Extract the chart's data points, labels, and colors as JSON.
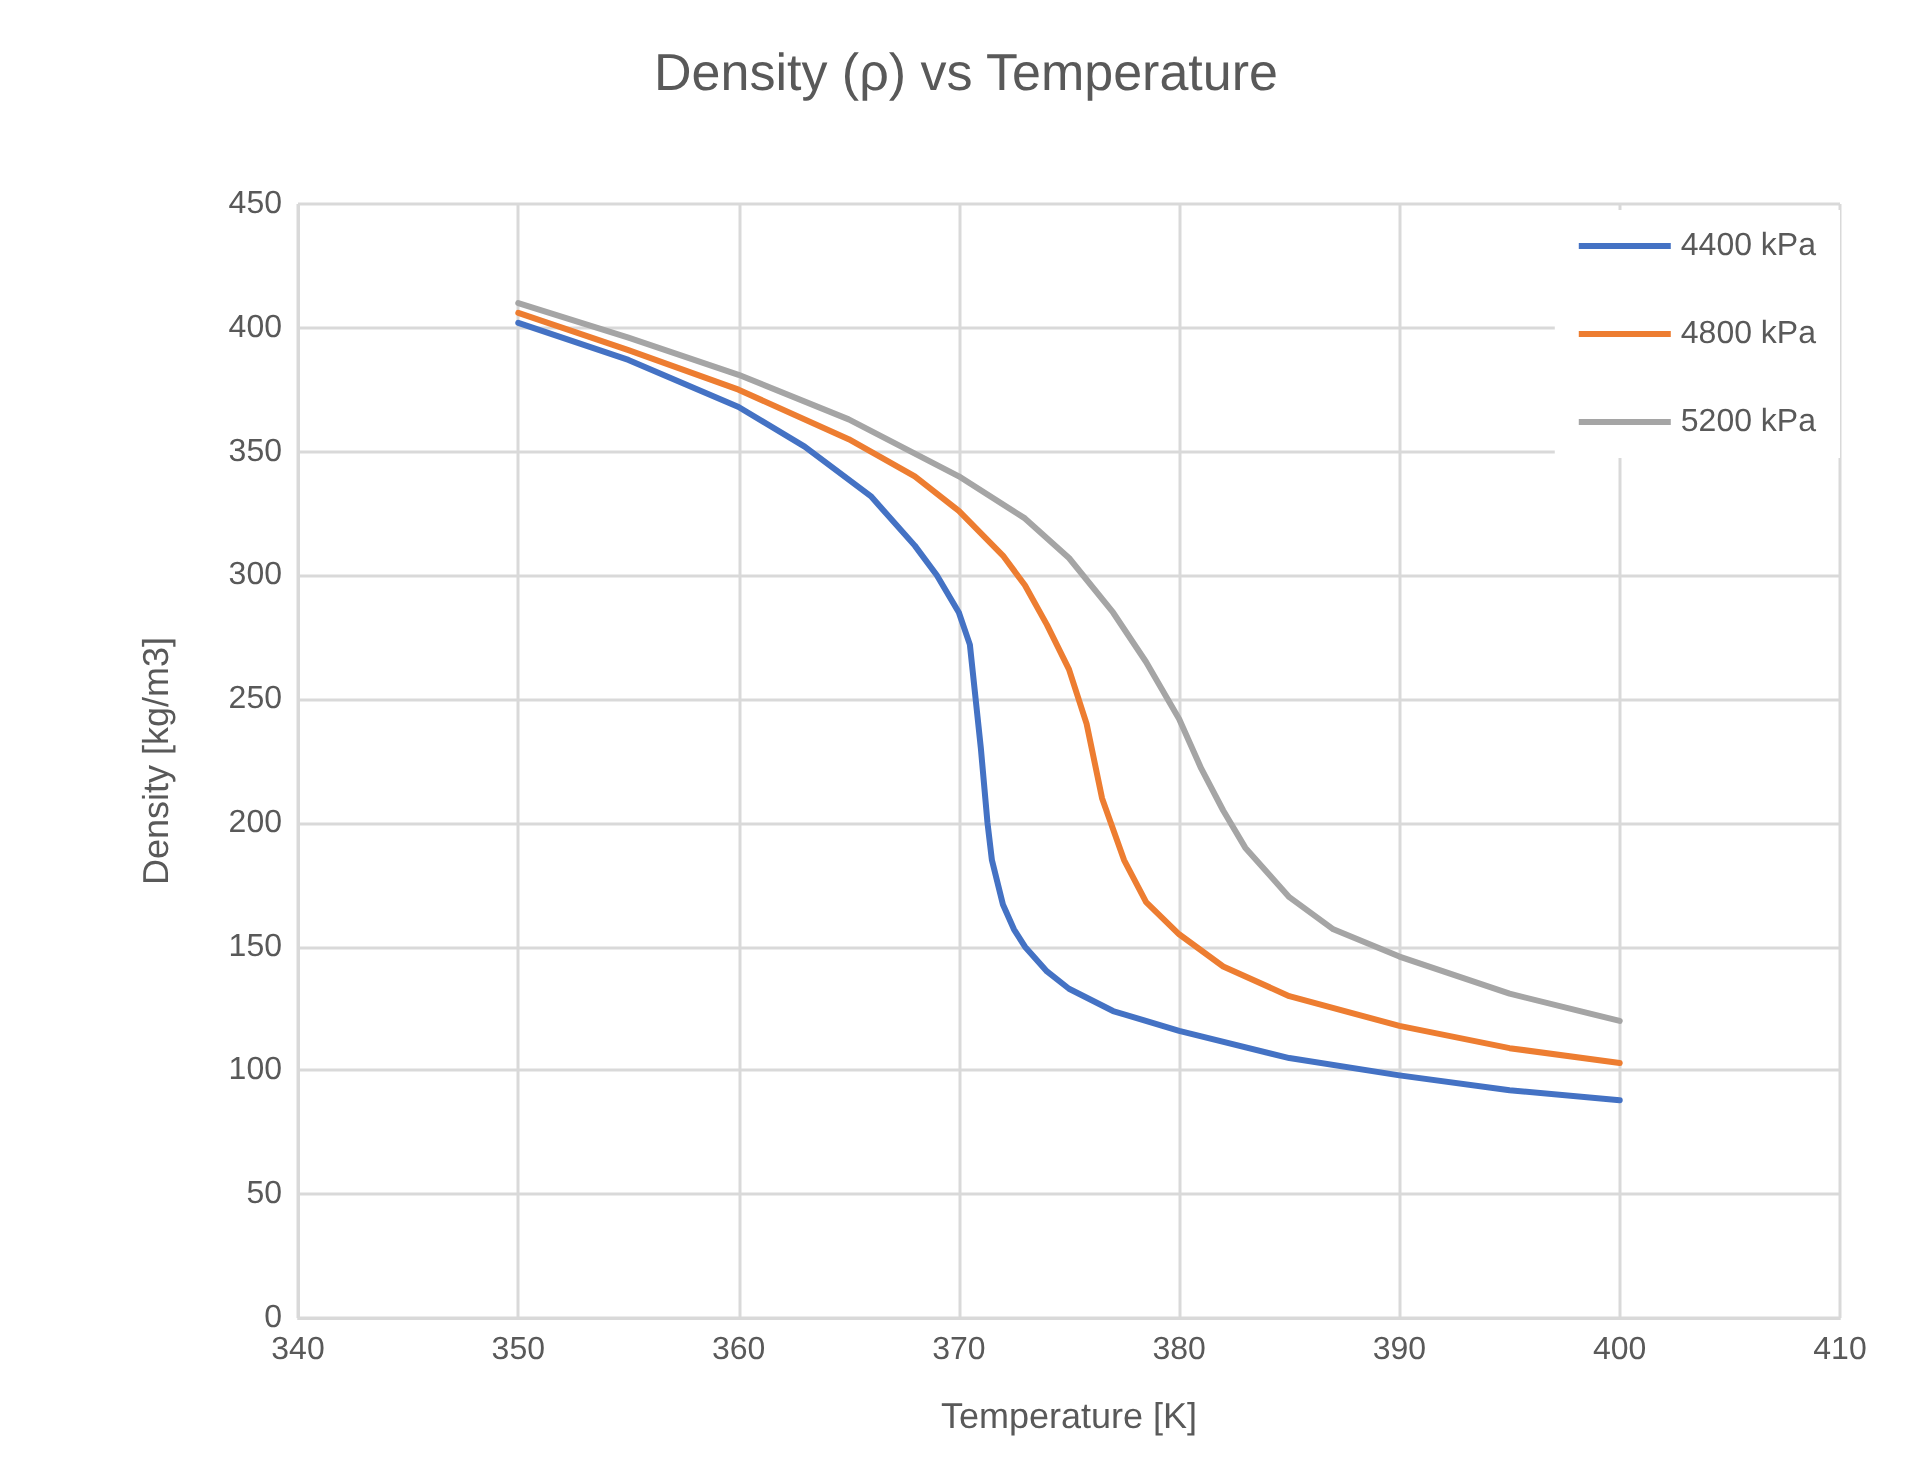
{
  "chart_data": {
    "type": "line",
    "title": "Density (ρ) vs Temperature",
    "xlabel": "Temperature [K]",
    "ylabel": "Density [kg/m3]",
    "xlim": [
      340,
      410
    ],
    "xticks": [
      340,
      350,
      360,
      370,
      380,
      390,
      400,
      410
    ],
    "ylim": [
      0,
      450
    ],
    "yticks": [
      0,
      50,
      100,
      150,
      200,
      250,
      300,
      350,
      400,
      450
    ],
    "grid": true,
    "legend": "top right",
    "marker": "none",
    "line_style": "solid",
    "series": [
      {
        "name": "4400 kPa",
        "color": "#4472c4",
        "x": [
          350,
          355,
          360,
          363,
          366,
          368,
          369,
          370,
          370.5,
          371,
          371.3,
          371.5,
          372,
          372.5,
          373,
          374,
          375,
          377,
          380,
          385,
          390,
          395,
          400
        ],
        "values": [
          402,
          387,
          368,
          352,
          332,
          312,
          300,
          285,
          272,
          230,
          200,
          185,
          167,
          157,
          150,
          140,
          133,
          124,
          116,
          105,
          98,
          92,
          88
        ]
      },
      {
        "name": "4800 kPa",
        "color": "#ed7d31",
        "x": [
          350,
          355,
          360,
          365,
          368,
          370,
          372,
          373,
          374,
          375,
          375.8,
          376.5,
          377.5,
          378.5,
          380,
          382,
          385,
          390,
          395,
          400
        ],
        "values": [
          406,
          391,
          375,
          355,
          340,
          326,
          308,
          296,
          280,
          262,
          240,
          210,
          185,
          168,
          155,
          142,
          130,
          118,
          109,
          103
        ]
      },
      {
        "name": "5200 kPa",
        "color": "#a5a5a5",
        "x": [
          350,
          355,
          360,
          365,
          370,
          373,
          375,
          377,
          378.5,
          380,
          381,
          382,
          383,
          385,
          387,
          390,
          395,
          400
        ],
        "values": [
          410,
          396,
          381,
          363,
          340,
          323,
          307,
          285,
          265,
          242,
          222,
          205,
          190,
          170,
          157,
          146,
          131,
          120
        ]
      }
    ]
  }
}
